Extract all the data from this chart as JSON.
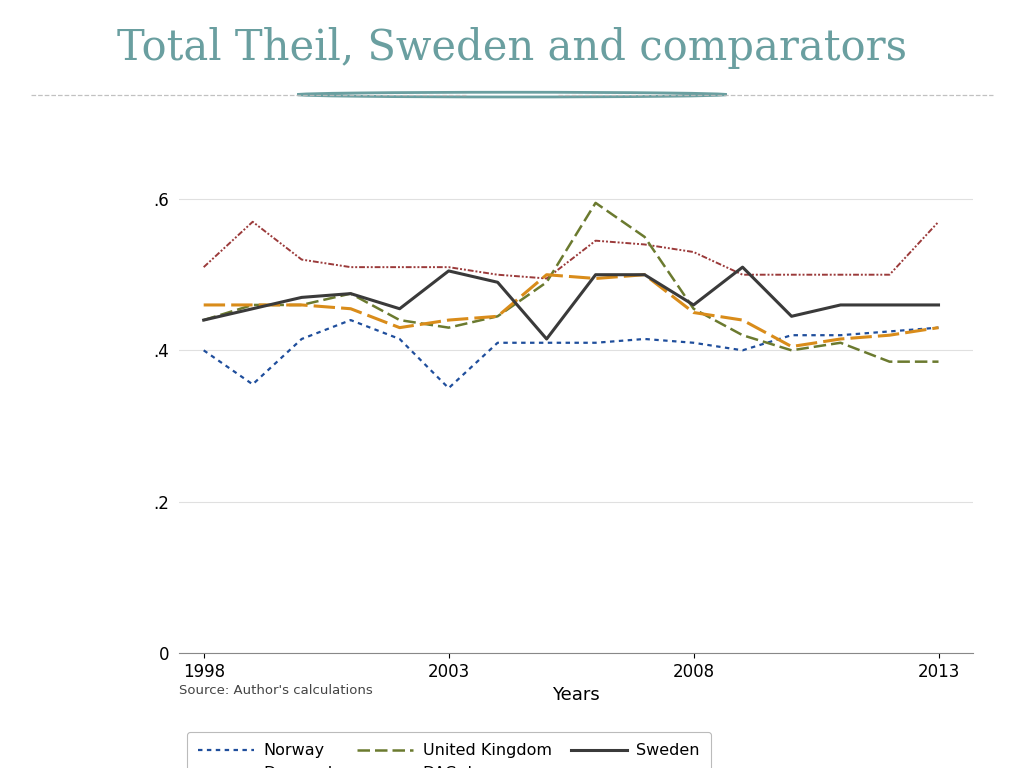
{
  "title": "Total Theil, Sweden and comparators",
  "title_color": "#6a9fa0",
  "xlabel": "Years",
  "ylabel": "",
  "years": [
    1998,
    1999,
    2000,
    2001,
    2002,
    2003,
    2004,
    2005,
    2006,
    2007,
    2008,
    2009,
    2010,
    2011,
    2012,
    2013
  ],
  "norway": [
    0.4,
    0.355,
    0.415,
    0.44,
    0.415,
    0.35,
    0.41,
    0.41,
    0.41,
    0.415,
    0.41,
    0.4,
    0.42,
    0.42,
    0.425,
    0.43
  ],
  "denmark": [
    0.51,
    0.57,
    0.52,
    0.51,
    0.51,
    0.51,
    0.5,
    0.495,
    0.545,
    0.54,
    0.53,
    0.5,
    0.5,
    0.5,
    0.5,
    0.57
  ],
  "uk": [
    0.44,
    0.46,
    0.46,
    0.475,
    0.44,
    0.43,
    0.445,
    0.49,
    0.595,
    0.55,
    0.455,
    0.42,
    0.4,
    0.41,
    0.385,
    0.385
  ],
  "dac": [
    0.46,
    0.46,
    0.46,
    0.455,
    0.43,
    0.44,
    0.445,
    0.5,
    0.495,
    0.5,
    0.45,
    0.44,
    0.405,
    0.415,
    0.42,
    0.43
  ],
  "sweden": [
    0.44,
    0.455,
    0.47,
    0.475,
    0.455,
    0.505,
    0.49,
    0.415,
    0.5,
    0.5,
    0.46,
    0.51,
    0.445,
    0.46,
    0.46,
    0.46
  ],
  "norway_color": "#1f4e9c",
  "denmark_color": "#9b3a3a",
  "uk_color": "#6b7a2f",
  "dac_color": "#d98c1a",
  "sweden_color": "#3a3a3a",
  "background_color": "#ffffff",
  "footer_color": "#7aabb0",
  "ylim_min": 0,
  "ylim_max": 0.65,
  "yticks": [
    0,
    0.2,
    0.4,
    0.6
  ],
  "ytick_labels": [
    "0",
    ".2",
    ".4",
    ".6"
  ],
  "xticks": [
    1998,
    2003,
    2008,
    2013
  ],
  "source_text": "Source: Author's calculations",
  "divider_color": "#bbbbbb",
  "circle_color": "#6a9fa0"
}
